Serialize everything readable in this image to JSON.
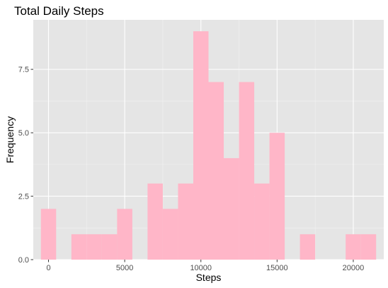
{
  "chart_data": {
    "type": "bar",
    "title": "Total Daily Steps",
    "xlabel": "Steps",
    "ylabel": "Frequency",
    "xlim": [
      -1000,
      22000
    ],
    "ylim": [
      0,
      9.45
    ],
    "x_ticks": [
      {
        "value": 0,
        "label": "0"
      },
      {
        "value": 5000,
        "label": "5000"
      },
      {
        "value": 10000,
        "label": "10000"
      },
      {
        "value": 15000,
        "label": "15000"
      },
      {
        "value": 20000,
        "label": "20000"
      }
    ],
    "y_ticks": [
      {
        "value": 0,
        "label": "0.0"
      },
      {
        "value": 2.5,
        "label": "2.5"
      },
      {
        "value": 5,
        "label": "5.0"
      },
      {
        "value": 7.5,
        "label": "7.5"
      }
    ],
    "bin_width": 1000,
    "bin_centers": [
      0,
      1000,
      2000,
      3000,
      4000,
      5000,
      6000,
      7000,
      8000,
      9000,
      10000,
      11000,
      12000,
      13000,
      14000,
      15000,
      16000,
      17000,
      18000,
      19000,
      20000,
      21000
    ],
    "values": [
      2,
      0,
      1,
      1,
      1,
      2,
      0,
      3,
      2,
      3,
      9,
      7,
      4,
      7,
      3,
      5,
      0,
      1,
      0,
      0,
      1,
      1
    ],
    "bar_color": "#ffb6c8",
    "panel_color": "#e5e5e5",
    "grid": true
  }
}
